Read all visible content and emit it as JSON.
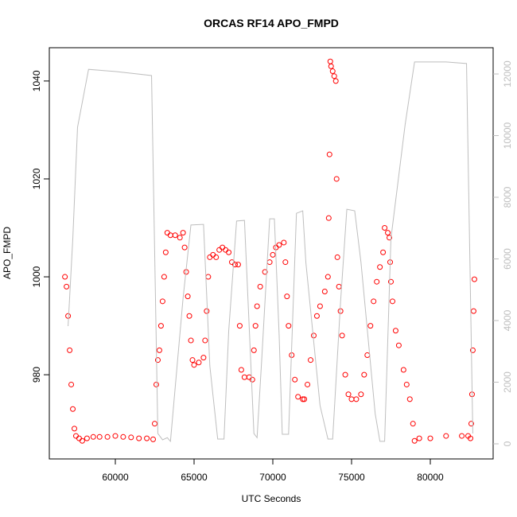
{
  "chart_data": {
    "type": "scatter",
    "title": "ORCAS RF14 APO_FMPD",
    "x_label": "UTC Seconds",
    "y_label": "APO_FMPD",
    "xlim": [
      55808,
      83990
    ],
    "xticks": [
      60000,
      65000,
      70000,
      75000,
      80000
    ],
    "ylim": [
      962.8,
      1046.8
    ],
    "yticks": [
      980,
      1000,
      1020,
      1040
    ],
    "y2lim": [
      -490,
      12852
    ],
    "y2ticks": [
      0,
      2000,
      4000,
      6000,
      8000,
      10000,
      12000
    ],
    "series": [
      {
        "color": "#ff0000",
        "x": [
          56800,
          56900,
          57000,
          57100,
          57200,
          57300,
          57400,
          57500,
          57700,
          57900,
          58200,
          58600,
          59000,
          59500,
          60000,
          60500,
          61000,
          61500,
          62000,
          62400,
          62500,
          62600,
          62700,
          62800,
          62900,
          63000,
          63100,
          63200,
          63300,
          63500,
          63800,
          64100,
          64300,
          64400,
          64500,
          64600,
          64700,
          64800,
          64900,
          65000,
          65300,
          65600,
          65700,
          65800,
          65900,
          66000,
          66200,
          66400,
          66600,
          66800,
          67000,
          67200,
          67400,
          67600,
          67800,
          67900,
          68000,
          68200,
          68500,
          68700,
          68800,
          68900,
          69000,
          69200,
          69500,
          69800,
          70000,
          70200,
          70400,
          70700,
          70800,
          70900,
          71000,
          71200,
          71400,
          71600,
          71900,
          72000,
          72200,
          72400,
          72600,
          72800,
          73000,
          73300,
          73500,
          73550,
          73600,
          73650,
          73700,
          73800,
          73900,
          74000,
          74050,
          74100,
          74200,
          74300,
          74400,
          74600,
          74800,
          75000,
          75300,
          75600,
          75800,
          76000,
          76200,
          76400,
          76600,
          76800,
          77000,
          77100,
          77300,
          77400,
          77450,
          77500,
          77600,
          77800,
          78000,
          78300,
          78500,
          78700,
          78900,
          79000,
          79300,
          80000,
          81000,
          82000,
          82400,
          82550,
          82600,
          82650,
          82700,
          82750,
          82800
        ],
        "values": [
          1000,
          998,
          992,
          985,
          978,
          973,
          969,
          967.5,
          967,
          966.5,
          967,
          967.3,
          967.3,
          967.3,
          967.5,
          967.3,
          967.2,
          967,
          967,
          966.8,
          970,
          978,
          983,
          985,
          990,
          995,
          1000,
          1005,
          1009,
          1008.5,
          1008.5,
          1008,
          1009,
          1006,
          1001,
          996,
          992,
          987,
          983,
          982,
          982.5,
          983.5,
          987,
          993,
          1000,
          1004,
          1004.5,
          1004,
          1005.5,
          1006,
          1005.5,
          1005,
          1003,
          1002.5,
          1002.5,
          990,
          981,
          979.5,
          979.5,
          979,
          985,
          990,
          994,
          998,
          1001,
          1003,
          1004.5,
          1006,
          1006.5,
          1007,
          1003,
          996,
          990,
          984,
          979,
          975.5,
          975,
          975,
          978,
          983,
          988,
          992,
          994,
          997,
          1000,
          1012,
          1025,
          1044,
          1043,
          1042,
          1041,
          1040,
          1020,
          1004,
          998,
          993,
          988,
          980,
          976,
          975,
          975,
          976,
          980,
          984,
          990,
          995,
          999,
          1002,
          1005,
          1010,
          1009,
          1008,
          1003,
          999,
          995,
          989,
          986,
          981,
          978,
          975,
          970,
          966.5,
          967,
          967,
          967.5,
          967.5,
          967.5,
          967,
          970,
          976,
          985,
          993,
          999.5
        ]
      },
      {
        "color": "#bebebe",
        "axis": "y2",
        "x": [
          57000,
          57300,
          57600,
          58300,
          60000,
          62300,
          62700,
          63000,
          63300,
          63500,
          64300,
          64800,
          65600,
          66000,
          66500,
          66900,
          67200,
          67700,
          68200,
          68800,
          69000,
          69300,
          69800,
          70100,
          70400,
          70600,
          71000,
          71500,
          71900,
          72100,
          73000,
          73500,
          73800,
          74300,
          74700,
          75200,
          75600,
          76500,
          76800,
          77100,
          77500,
          78400,
          79000,
          81000,
          82300,
          82700
        ],
        "values": [
          3820,
          6660,
          10270,
          12150,
          12080,
          11950,
          335,
          130,
          200,
          80,
          4720,
          7100,
          7120,
          2530,
          155,
          155,
          3670,
          7230,
          7250,
          335,
          200,
          2780,
          7300,
          7300,
          3550,
          310,
          310,
          7480,
          7560,
          5880,
          1240,
          155,
          155,
          4590,
          7610,
          7560,
          5880,
          980,
          80,
          80,
          6660,
          10350,
          12390,
          12390,
          12340,
          335
        ]
      }
    ]
  }
}
